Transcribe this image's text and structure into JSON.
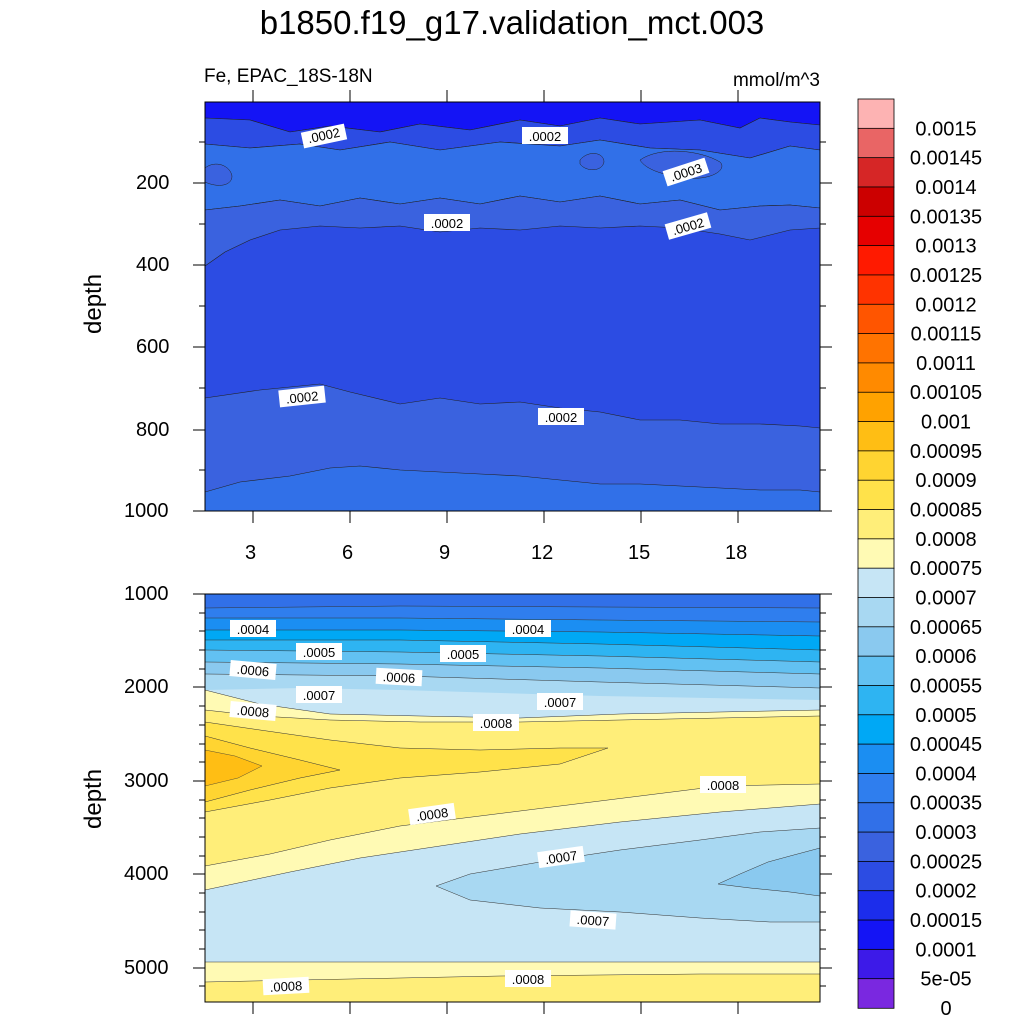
{
  "title": "b1850.f19_g17.validation_mct.003",
  "subtitle_left": "Fe, EPAC_18S-18N",
  "subtitle_right": "mmol/m^3",
  "chart_data": [
    {
      "type": "contour",
      "panel": "top",
      "ylabel": "depth",
      "y_ticks": [
        "200",
        "400",
        "600",
        "800",
        "1000"
      ],
      "x_ticks": [
        "3",
        "6",
        "9",
        "12",
        "15",
        "18"
      ],
      "ylim": [
        0,
        1000
      ],
      "contour_labels": [
        ".0002",
        ".0002",
        ".0003",
        ".0002",
        ".0002",
        ".0002",
        ".0002"
      ]
    },
    {
      "type": "contour",
      "panel": "bottom",
      "ylabel": "depth",
      "y_ticks": [
        "1000",
        "2000",
        "3000",
        "4000",
        "5000"
      ],
      "ylim": [
        1000,
        5400
      ],
      "contour_labels": [
        ".0004",
        ".0004",
        ".0005",
        ".0005",
        ".0006",
        ".0006",
        ".0007",
        ".0007",
        ".0008",
        ".0008",
        ".0008",
        ".0008",
        ".0007",
        ".0007",
        ".0008",
        ".0008"
      ]
    }
  ],
  "colorbar": {
    "labels": [
      "0.0015",
      "0.00145",
      "0.0014",
      "0.00135",
      "0.0013",
      "0.00125",
      "0.0012",
      "0.00115",
      "0.0011",
      "0.00105",
      "0.001",
      "0.00095",
      "0.0009",
      "0.00085",
      "0.0008",
      "0.00075",
      "0.0007",
      "0.00065",
      "0.0006",
      "0.00055",
      "0.0005",
      "0.00045",
      "0.0004",
      "0.00035",
      "0.0003",
      "0.00025",
      "0.0002",
      "0.00015",
      "0.0001",
      "5e-05",
      "0"
    ],
    "colors": [
      "#FDB3B3",
      "#E96565",
      "#D62626",
      "#CC0000",
      "#E60000",
      "#FF1A00",
      "#FF3300",
      "#FF5500",
      "#FF7300",
      "#FF8A00",
      "#FFA200",
      "#FFBE14",
      "#FFD431",
      "#FFE24A",
      "#FFEE79",
      "#FFFAB4",
      "#C6E5F5",
      "#A8D8F2",
      "#8AC9EF",
      "#62C1F2",
      "#2EB4F2",
      "#00A8F5",
      "#1B8EF2",
      "#2F7EEE",
      "#3170E8",
      "#3A62DF",
      "#2C4CE3",
      "#1C2DEB",
      "#1414F5",
      "#3D1AE8",
      "#7A28E0"
    ]
  }
}
